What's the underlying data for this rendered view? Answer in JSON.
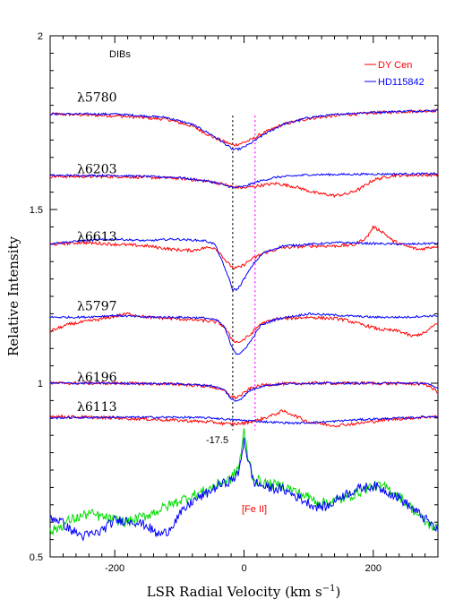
{
  "chart_data": {
    "type": "line",
    "xlabel": "LSR Radial Velocity (km s",
    "xlabel_sup": "−1",
    "xlabel_tail": ")",
    "ylabel": "Relative Intensity",
    "xlim": [
      -300,
      300
    ],
    "ylim": [
      0.5,
      2.0
    ],
    "x_ticks": [
      -200,
      0,
      200
    ],
    "y_ticks": [
      0.5,
      1,
      1.5,
      2
    ],
    "y_tick_labels": [
      "0.5",
      "1",
      "1.5",
      "2"
    ],
    "header_label": "DIBs",
    "legend": [
      {
        "name": "DY Cen",
        "color": "#ff0000"
      },
      {
        "name": "HD115842",
        "color": "#0000ff"
      }
    ],
    "colors": {
      "dycen": "#ff0000",
      "hd": "#0000ff",
      "feii": "#00dd00",
      "vline_black": "#000000",
      "vline_magenta": "#ff00ff"
    },
    "vertical_lines": [
      {
        "x": -17.5,
        "color": "#000000",
        "label": "-17.5"
      },
      {
        "x": 17,
        "color": "#ff00ff"
      }
    ],
    "feii_label": "[Fe II]",
    "bands": [
      {
        "label": "λ5780",
        "label_y": 1.81,
        "baseline": 1.775,
        "dycen": [
          [
            -300,
            1.775
          ],
          [
            -200,
            1.77
          ],
          [
            -120,
            1.76
          ],
          [
            -80,
            1.74
          ],
          [
            -50,
            1.71
          ],
          [
            -30,
            1.695
          ],
          [
            -17,
            1.685
          ],
          [
            -5,
            1.69
          ],
          [
            10,
            1.7
          ],
          [
            30,
            1.72
          ],
          [
            60,
            1.745
          ],
          [
            100,
            1.762
          ],
          [
            150,
            1.772
          ],
          [
            200,
            1.778
          ],
          [
            250,
            1.782
          ],
          [
            300,
            1.785
          ]
        ],
        "hd": [
          [
            -300,
            1.775
          ],
          [
            -200,
            1.775
          ],
          [
            -120,
            1.765
          ],
          [
            -80,
            1.745
          ],
          [
            -50,
            1.715
          ],
          [
            -30,
            1.69
          ],
          [
            -17,
            1.672
          ],
          [
            -5,
            1.675
          ],
          [
            10,
            1.69
          ],
          [
            30,
            1.715
          ],
          [
            60,
            1.745
          ],
          [
            100,
            1.765
          ],
          [
            150,
            1.775
          ],
          [
            200,
            1.78
          ],
          [
            250,
            1.783
          ],
          [
            300,
            1.785
          ]
        ]
      },
      {
        "label": "λ6203",
        "label_y": 1.605,
        "baseline": 1.6,
        "dycen": [
          [
            -300,
            1.595
          ],
          [
            -200,
            1.595
          ],
          [
            -100,
            1.59
          ],
          [
            -50,
            1.58
          ],
          [
            -30,
            1.572
          ],
          [
            -17,
            1.565
          ],
          [
            0,
            1.562
          ],
          [
            20,
            1.568
          ],
          [
            50,
            1.575
          ],
          [
            80,
            1.565
          ],
          [
            110,
            1.548
          ],
          [
            140,
            1.54
          ],
          [
            160,
            1.545
          ],
          [
            180,
            1.56
          ],
          [
            200,
            1.585
          ],
          [
            230,
            1.598
          ],
          [
            300,
            1.6
          ]
        ],
        "hd": [
          [
            -300,
            1.598
          ],
          [
            -200,
            1.598
          ],
          [
            -100,
            1.592
          ],
          [
            -50,
            1.58
          ],
          [
            -30,
            1.57
          ],
          [
            -17,
            1.563
          ],
          [
            0,
            1.566
          ],
          [
            20,
            1.58
          ],
          [
            50,
            1.593
          ],
          [
            100,
            1.6
          ],
          [
            200,
            1.602
          ],
          [
            300,
            1.603
          ]
        ]
      },
      {
        "label": "λ6613",
        "label_y": 1.41,
        "baseline": 1.405,
        "dycen": [
          [
            -300,
            1.4
          ],
          [
            -250,
            1.405
          ],
          [
            -200,
            1.4
          ],
          [
            -150,
            1.395
          ],
          [
            -110,
            1.385
          ],
          [
            -80,
            1.382
          ],
          [
            -60,
            1.39
          ],
          [
            -45,
            1.39
          ],
          [
            -35,
            1.37
          ],
          [
            -25,
            1.345
          ],
          [
            -15,
            1.33
          ],
          [
            -5,
            1.335
          ],
          [
            10,
            1.355
          ],
          [
            30,
            1.375
          ],
          [
            60,
            1.39
          ],
          [
            100,
            1.395
          ],
          [
            140,
            1.395
          ],
          [
            170,
            1.398
          ],
          [
            190,
            1.42
          ],
          [
            200,
            1.45
          ],
          [
            215,
            1.435
          ],
          [
            230,
            1.41
          ],
          [
            250,
            1.395
          ],
          [
            270,
            1.385
          ],
          [
            300,
            1.395
          ]
        ],
        "hd": [
          [
            -300,
            1.402
          ],
          [
            -250,
            1.41
          ],
          [
            -200,
            1.415
          ],
          [
            -150,
            1.41
          ],
          [
            -110,
            1.415
          ],
          [
            -80,
            1.412
          ],
          [
            -60,
            1.41
          ],
          [
            -45,
            1.4
          ],
          [
            -35,
            1.355
          ],
          [
            -25,
            1.31
          ],
          [
            -18,
            1.27
          ],
          [
            -10,
            1.27
          ],
          [
            0,
            1.3
          ],
          [
            15,
            1.345
          ],
          [
            30,
            1.375
          ],
          [
            60,
            1.395
          ],
          [
            100,
            1.4
          ],
          [
            150,
            1.405
          ],
          [
            200,
            1.402
          ],
          [
            250,
            1.4
          ],
          [
            300,
            1.403
          ]
        ]
      },
      {
        "label": "λ5797",
        "label_y": 1.21,
        "baseline": 1.195,
        "dycen": [
          [
            -300,
            1.15
          ],
          [
            -270,
            1.17
          ],
          [
            -220,
            1.185
          ],
          [
            -180,
            1.2
          ],
          [
            -150,
            1.19
          ],
          [
            -100,
            1.185
          ],
          [
            -60,
            1.18
          ],
          [
            -40,
            1.175
          ],
          [
            -30,
            1.16
          ],
          [
            -20,
            1.13
          ],
          [
            -12,
            1.118
          ],
          [
            -5,
            1.12
          ],
          [
            10,
            1.14
          ],
          [
            25,
            1.17
          ],
          [
            50,
            1.185
          ],
          [
            100,
            1.19
          ],
          [
            150,
            1.185
          ],
          [
            180,
            1.17
          ],
          [
            210,
            1.155
          ],
          [
            240,
            1.15
          ],
          [
            260,
            1.135
          ],
          [
            280,
            1.145
          ],
          [
            300,
            1.175
          ]
        ],
        "hd": [
          [
            -300,
            1.19
          ],
          [
            -250,
            1.19
          ],
          [
            -200,
            1.195
          ],
          [
            -150,
            1.19
          ],
          [
            -100,
            1.19
          ],
          [
            -60,
            1.188
          ],
          [
            -40,
            1.18
          ],
          [
            -30,
            1.16
          ],
          [
            -20,
            1.11
          ],
          [
            -12,
            1.085
          ],
          [
            -5,
            1.085
          ],
          [
            10,
            1.12
          ],
          [
            25,
            1.165
          ],
          [
            50,
            1.185
          ],
          [
            100,
            1.2
          ],
          [
            150,
            1.195
          ],
          [
            200,
            1.19
          ],
          [
            250,
            1.19
          ],
          [
            300,
            1.195
          ]
        ]
      },
      {
        "label": "λ6196",
        "label_y": 1.005,
        "baseline": 1.0,
        "dycen": [
          [
            -300,
            1.0
          ],
          [
            -200,
            1.0
          ],
          [
            -100,
            0.997
          ],
          [
            -50,
            0.99
          ],
          [
            -30,
            0.978
          ],
          [
            -20,
            0.962
          ],
          [
            -14,
            0.958
          ],
          [
            -5,
            0.965
          ],
          [
            10,
            0.985
          ],
          [
            30,
            0.995
          ],
          [
            60,
            0.998
          ],
          [
            100,
            1.0
          ],
          [
            200,
            1.0
          ],
          [
            280,
            0.998
          ],
          [
            300,
            0.975
          ]
        ],
        "hd": [
          [
            -300,
            1.0
          ],
          [
            -200,
            1.0
          ],
          [
            -100,
            0.998
          ],
          [
            -50,
            0.993
          ],
          [
            -30,
            0.98
          ],
          [
            -20,
            0.955
          ],
          [
            -14,
            0.948
          ],
          [
            -5,
            0.955
          ],
          [
            10,
            0.98
          ],
          [
            30,
            0.993
          ],
          [
            60,
            0.998
          ],
          [
            100,
            1.0
          ],
          [
            200,
            1.0
          ],
          [
            280,
            1.0
          ],
          [
            300,
            0.985
          ]
        ]
      },
      {
        "label": "λ6113",
        "label_y": 0.92,
        "baseline": 0.9,
        "dycen": [
          [
            -300,
            0.905
          ],
          [
            -200,
            0.9
          ],
          [
            -100,
            0.893
          ],
          [
            -50,
            0.888
          ],
          [
            -20,
            0.882
          ],
          [
            0,
            0.885
          ],
          [
            20,
            0.893
          ],
          [
            40,
            0.905
          ],
          [
            60,
            0.92
          ],
          [
            75,
            0.91
          ],
          [
            100,
            0.888
          ],
          [
            140,
            0.878
          ],
          [
            180,
            0.885
          ],
          [
            220,
            0.895
          ],
          [
            260,
            0.9
          ],
          [
            300,
            0.905
          ]
        ],
        "hd": [
          [
            -300,
            0.9
          ],
          [
            -200,
            0.902
          ],
          [
            -100,
            0.902
          ],
          [
            -50,
            0.9
          ],
          [
            -20,
            0.895
          ],
          [
            10,
            0.892
          ],
          [
            40,
            0.888
          ],
          [
            80,
            0.885
          ],
          [
            120,
            0.888
          ],
          [
            160,
            0.893
          ],
          [
            200,
            0.897
          ],
          [
            250,
            0.9
          ],
          [
            300,
            0.905
          ]
        ]
      }
    ],
    "feii_series": {
      "green": [
        [
          -300,
          0.57
        ],
        [
          -270,
          0.605
        ],
        [
          -240,
          0.625
        ],
        [
          -210,
          0.61
        ],
        [
          -180,
          0.6
        ],
        [
          -150,
          0.62
        ],
        [
          -120,
          0.645
        ],
        [
          -90,
          0.67
        ],
        [
          -60,
          0.69
        ],
        [
          -40,
          0.71
        ],
        [
          -20,
          0.725
        ],
        [
          -8,
          0.76
        ],
        [
          0,
          0.86
        ],
        [
          6,
          0.79
        ],
        [
          15,
          0.725
        ],
        [
          35,
          0.71
        ],
        [
          60,
          0.705
        ],
        [
          90,
          0.68
        ],
        [
          120,
          0.655
        ],
        [
          150,
          0.665
        ],
        [
          175,
          0.685
        ],
        [
          200,
          0.705
        ],
        [
          220,
          0.7
        ],
        [
          240,
          0.675
        ],
        [
          260,
          0.64
        ],
        [
          280,
          0.6
        ],
        [
          300,
          0.58
        ]
      ],
      "blue": [
        [
          -300,
          0.615
        ],
        [
          -285,
          0.605
        ],
        [
          -270,
          0.58
        ],
        [
          -250,
          0.56
        ],
        [
          -225,
          0.57
        ],
        [
          -200,
          0.605
        ],
        [
          -175,
          0.605
        ],
        [
          -150,
          0.59
        ],
        [
          -135,
          0.565
        ],
        [
          -120,
          0.57
        ],
        [
          -100,
          0.62
        ],
        [
          -80,
          0.66
        ],
        [
          -60,
          0.68
        ],
        [
          -40,
          0.705
        ],
        [
          -20,
          0.72
        ],
        [
          -8,
          0.74
        ],
        [
          0,
          0.84
        ],
        [
          6,
          0.78
        ],
        [
          15,
          0.715
        ],
        [
          35,
          0.7
        ],
        [
          60,
          0.695
        ],
        [
          90,
          0.665
        ],
        [
          110,
          0.645
        ],
        [
          130,
          0.645
        ],
        [
          150,
          0.675
        ],
        [
          175,
          0.695
        ],
        [
          200,
          0.705
        ],
        [
          220,
          0.69
        ],
        [
          240,
          0.67
        ],
        [
          260,
          0.64
        ],
        [
          280,
          0.61
        ],
        [
          300,
          0.575
        ]
      ]
    }
  }
}
